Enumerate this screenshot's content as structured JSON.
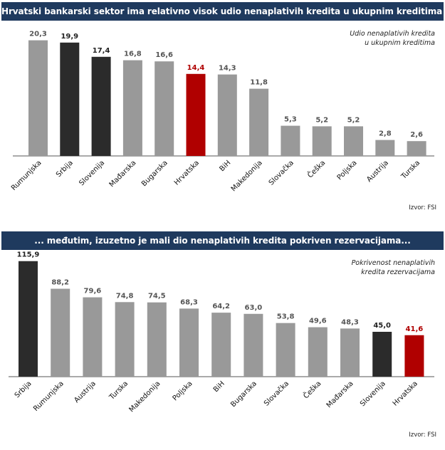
{
  "colors": {
    "banner": "#1f3a5e",
    "bar_default": "#999999",
    "bar_dark": "#2b2b2b",
    "bar_highlight": "#b00000"
  },
  "chart_data": [
    {
      "type": "bar",
      "banner": "Hrvatski bankarski sektor ima relativno visok udio nenaplativih kredita u ukupnim kreditima ...",
      "legend_lines": [
        "Udio nenaplativih kredita",
        "u ukupnim kreditima"
      ],
      "source": "Izvor: FSI",
      "categories": [
        "Rumunjska",
        "Srbija",
        "Slovenija",
        "Mađarska",
        "Bugarska",
        "Hrvatska",
        "BiH",
        "Makedonija",
        "Slovačka",
        "Češka",
        "Poljska",
        "Austrija",
        "Turska"
      ],
      "values": [
        20.3,
        19.9,
        17.4,
        16.8,
        16.6,
        14.4,
        14.3,
        11.8,
        5.3,
        5.2,
        5.2,
        2.8,
        2.6
      ],
      "labels": [
        "20,3",
        "19,9",
        "17,4",
        "16,8",
        "16,6",
        "14,4",
        "14,3",
        "11,8",
        "5,3",
        "5,2",
        "5,2",
        "2,8",
        "2,6"
      ],
      "styles": [
        "default",
        "dark",
        "dark",
        "default",
        "default",
        "highlight",
        "default",
        "default",
        "default",
        "default",
        "default",
        "default",
        "default"
      ],
      "ylim": [
        0,
        22
      ],
      "grid": false
    },
    {
      "type": "bar",
      "banner": "... međutim, izuzetno je mali dio nenaplativih kredita pokriven rezervacijama...",
      "legend_lines": [
        "Pokrivenost nenaplativih",
        "kredita rezervacijama"
      ],
      "source": "Izvor: FSI",
      "categories": [
        "Srbija",
        "Rumunjska",
        "Austrija",
        "Turska",
        "Makedonija",
        "Poljska",
        "BiH",
        "Bugarska",
        "Slovačka",
        "Češka",
        "Mađarska",
        "Slovenija",
        "Hrvatska"
      ],
      "values": [
        115.9,
        88.2,
        79.6,
        74.8,
        74.5,
        68.3,
        64.2,
        63.0,
        53.8,
        49.6,
        48.3,
        45.0,
        41.6
      ],
      "labels": [
        "115,9",
        "88,2",
        "79,6",
        "74,8",
        "74,5",
        "68,3",
        "64,2",
        "63,0",
        "53,8",
        "49,6",
        "48,3",
        "45,0",
        "41,6"
      ],
      "styles": [
        "dark",
        "default",
        "default",
        "default",
        "default",
        "default",
        "default",
        "default",
        "default",
        "default",
        "default",
        "dark",
        "highlight"
      ],
      "ylim": [
        0,
        125
      ],
      "grid": false
    }
  ]
}
